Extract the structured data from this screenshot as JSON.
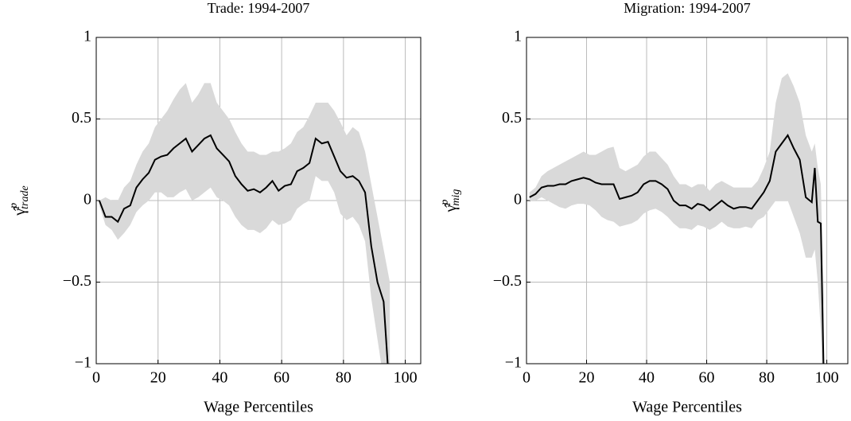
{
  "chart_data": [
    {
      "type": "line",
      "title": "Trade: 1994-2007",
      "xlabel": "Wage Percentiles",
      "ylabel": {
        "symbol": "γ̂",
        "sup": "p",
        "sub": "trade"
      },
      "xlim": [
        0,
        105
      ],
      "ylim": [
        -1,
        1
      ],
      "xticks": [
        0,
        20,
        40,
        60,
        80,
        100
      ],
      "yticks": [
        {
          "value": -1,
          "label": "−1"
        },
        {
          "value": -0.5,
          "label": "−0.5"
        },
        0,
        0.5,
        1
      ],
      "grid": true,
      "x": [
        1,
        3,
        5,
        7,
        9,
        11,
        13,
        15,
        17,
        19,
        21,
        23,
        25,
        27,
        29,
        31,
        33,
        35,
        37,
        39,
        41,
        43,
        45,
        47,
        49,
        51,
        53,
        55,
        57,
        59,
        61,
        63,
        65,
        67,
        69,
        71,
        73,
        75,
        77,
        79,
        81,
        83,
        85,
        87,
        89,
        91,
        93,
        95
      ],
      "series": [
        {
          "color": "#000000",
          "values": [
            0,
            -0.1,
            -0.1,
            -0.13,
            -0.05,
            -0.03,
            0.08,
            0.13,
            0.17,
            0.25,
            0.27,
            0.28,
            0.32,
            0.35,
            0.38,
            0.3,
            0.34,
            0.38,
            0.4,
            0.32,
            0.28,
            0.24,
            0.15,
            0.1,
            0.06,
            0.07,
            0.05,
            0.08,
            0.12,
            0.06,
            0.09,
            0.1,
            0.18,
            0.2,
            0.23,
            0.38,
            0.35,
            0.36,
            0.27,
            0.18,
            0.14,
            0.15,
            0.12,
            0.05,
            -0.28,
            -0.5,
            -0.62,
            -1.2
          ]
        }
      ],
      "band": {
        "color": "#d9d9d9",
        "upper": [
          0,
          0.02,
          0,
          0,
          0.08,
          0.12,
          0.22,
          0.3,
          0.35,
          0.45,
          0.5,
          0.55,
          0.62,
          0.68,
          0.72,
          0.6,
          0.65,
          0.72,
          0.72,
          0.6,
          0.55,
          0.5,
          0.42,
          0.35,
          0.3,
          0.3,
          0.28,
          0.28,
          0.3,
          0.3,
          0.32,
          0.35,
          0.42,
          0.45,
          0.52,
          0.6,
          0.6,
          0.6,
          0.55,
          0.48,
          0.4,
          0.45,
          0.42,
          0.3,
          0.1,
          -0.1,
          -0.3,
          -0.5
        ],
        "lower": [
          -0.03,
          -0.15,
          -0.18,
          -0.24,
          -0.2,
          -0.15,
          -0.07,
          -0.03,
          0,
          0.05,
          0.05,
          0.02,
          0.02,
          0.05,
          0.07,
          0,
          0.02,
          0.05,
          0.08,
          0.02,
          0,
          -0.03,
          -0.1,
          -0.15,
          -0.18,
          -0.18,
          -0.2,
          -0.17,
          -0.12,
          -0.15,
          -0.14,
          -0.12,
          -0.05,
          -0.02,
          0,
          0.15,
          0.12,
          0.12,
          0.05,
          -0.08,
          -0.12,
          -0.1,
          -0.15,
          -0.25,
          -0.6,
          -0.85,
          -1.1,
          -1.3
        ]
      }
    },
    {
      "type": "line",
      "title": "Migration: 1994-2007",
      "xlabel": "Wage Percentiles",
      "ylabel": {
        "symbol": "γ̂",
        "sup": "p",
        "sub": "mig"
      },
      "xlim": [
        0,
        107
      ],
      "ylim": [
        -1,
        1
      ],
      "xticks": [
        0,
        20,
        40,
        60,
        80,
        100
      ],
      "yticks": [
        {
          "value": -1,
          "label": "−1"
        },
        {
          "value": -0.5,
          "label": "−0.5"
        },
        0,
        0.5,
        1
      ],
      "grid": true,
      "x": [
        1,
        3,
        5,
        7,
        9,
        11,
        13,
        15,
        17,
        19,
        21,
        23,
        25,
        27,
        29,
        31,
        33,
        35,
        37,
        39,
        41,
        43,
        45,
        47,
        49,
        51,
        53,
        55,
        57,
        59,
        61,
        63,
        65,
        67,
        69,
        71,
        73,
        75,
        77,
        79,
        81,
        83,
        85,
        87,
        89,
        91,
        93,
        95,
        96,
        97,
        98,
        99
      ],
      "series": [
        {
          "color": "#000000",
          "values": [
            0.02,
            0.04,
            0.08,
            0.09,
            0.09,
            0.1,
            0.1,
            0.12,
            0.13,
            0.14,
            0.13,
            0.11,
            0.1,
            0.1,
            0.1,
            0.01,
            0.02,
            0.03,
            0.05,
            0.1,
            0.12,
            0.12,
            0.1,
            0.07,
            0,
            -0.03,
            -0.03,
            -0.05,
            -0.02,
            -0.03,
            -0.06,
            -0.03,
            0,
            -0.03,
            -0.05,
            -0.04,
            -0.04,
            -0.05,
            0,
            0.05,
            0.12,
            0.3,
            0.35,
            0.4,
            0.32,
            0.25,
            0.02,
            -0.01,
            0.2,
            -0.13,
            -0.14,
            -1.1
          ]
        }
      ],
      "band": {
        "color": "#d9d9d9",
        "upper": [
          0.05,
          0.08,
          0.15,
          0.18,
          0.2,
          0.22,
          0.24,
          0.26,
          0.28,
          0.3,
          0.28,
          0.28,
          0.3,
          0.32,
          0.33,
          0.2,
          0.18,
          0.2,
          0.22,
          0.27,
          0.3,
          0.3,
          0.26,
          0.22,
          0.15,
          0.1,
          0.1,
          0.08,
          0.1,
          0.1,
          0.06,
          0.1,
          0.12,
          0.1,
          0.08,
          0.08,
          0.08,
          0.08,
          0.12,
          0.2,
          0.3,
          0.6,
          0.75,
          0.78,
          0.7,
          0.6,
          0.4,
          0.3,
          0.35,
          0.2,
          0.1,
          -0.6
        ],
        "lower": [
          0,
          0,
          0.02,
          0,
          -0.02,
          -0.04,
          -0.05,
          -0.03,
          -0.02,
          -0.02,
          -0.03,
          -0.06,
          -0.1,
          -0.12,
          -0.13,
          -0.16,
          -0.15,
          -0.14,
          -0.12,
          -0.08,
          -0.06,
          -0.05,
          -0.07,
          -0.1,
          -0.14,
          -0.17,
          -0.17,
          -0.18,
          -0.15,
          -0.16,
          -0.18,
          -0.16,
          -0.13,
          -0.16,
          -0.17,
          -0.17,
          -0.16,
          -0.17,
          -0.12,
          -0.1,
          -0.05,
          0,
          0,
          0,
          -0.1,
          -0.2,
          -0.35,
          -0.35,
          -0.3,
          -0.5,
          -0.8,
          -1.4
        ]
      }
    }
  ]
}
